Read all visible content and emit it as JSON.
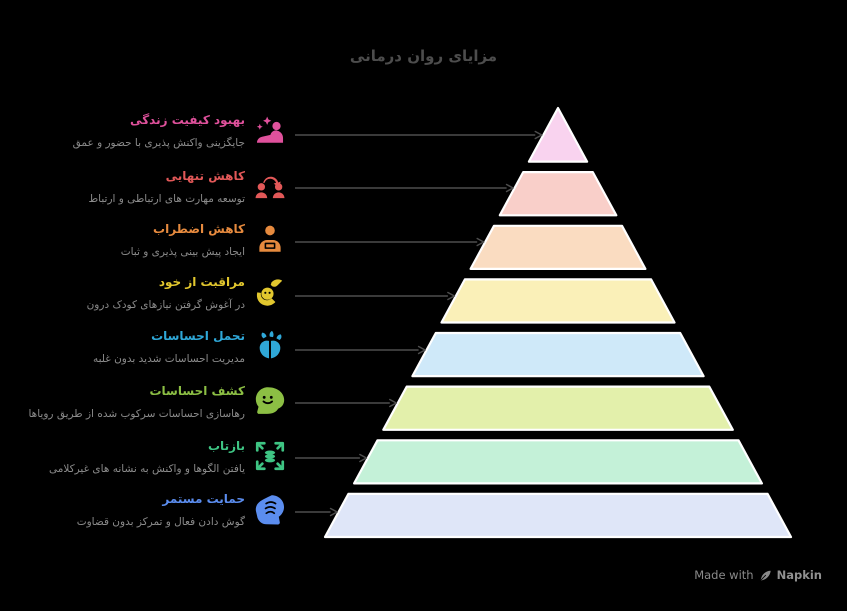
{
  "title": "مزایای روان درمانی",
  "footer": {
    "made_with": "Made with",
    "brand": "Napkin"
  },
  "colors": {
    "background": "#000000",
    "title": "#4d4d4d",
    "description": "#8b8b8b",
    "arrow": "#4d4d4d",
    "layer_border": "#ffffff",
    "footer_text": "#8a8a8a"
  },
  "items": [
    {
      "label": "بهبود کیفیت زندگی",
      "description": "جایگزینی واکنش پذیری با حضور و عمق",
      "accent": "#e0519c",
      "layer_color": "#f9d3ef",
      "icon": "person-sparkles"
    },
    {
      "label": "کاهش تنهایی",
      "description": "توسعه مهارت های ارتباطی و ارتباط",
      "accent": "#e25858",
      "layer_color": "#f9cfc9",
      "icon": "people-connection"
    },
    {
      "label": "کاهش اضطراب",
      "description": "ایجاد پیش بینی پذیری و ثبات",
      "accent": "#e68a3e",
      "layer_color": "#fadcc1",
      "icon": "person-at-desk"
    },
    {
      "label": "مراقبت از خود",
      "description": "در آغوش گرفتن نیازهای کودک درون",
      "accent": "#e2c72e",
      "layer_color": "#faf0b8",
      "icon": "hands-holding-face"
    },
    {
      "label": "تحمل احساسات",
      "description": "مدیریت احساسات شدید بدون غلبه",
      "accent": "#2fa8d8",
      "layer_color": "#cfe9f9",
      "icon": "brain-growth"
    },
    {
      "label": "کشف احساسات",
      "description": "رهاسازی احساسات سرکوب شده از طریق رویاها",
      "accent": "#8cbf44",
      "layer_color": "#e3f0ab",
      "icon": "head-smile"
    },
    {
      "label": "بازتاب",
      "description": "یافتن الگوها و واکنش به نشانه های غیرکلامی",
      "accent": "#3ec483",
      "layer_color": "#c4f1d8",
      "icon": "expand-arrows"
    },
    {
      "label": "حمایت مستمر",
      "description": "گوش دادن فعال و تمرکز بدون قضاوت",
      "accent": "#5b8def",
      "layer_color": "#dfe6f8",
      "icon": "listening-head"
    }
  ]
}
